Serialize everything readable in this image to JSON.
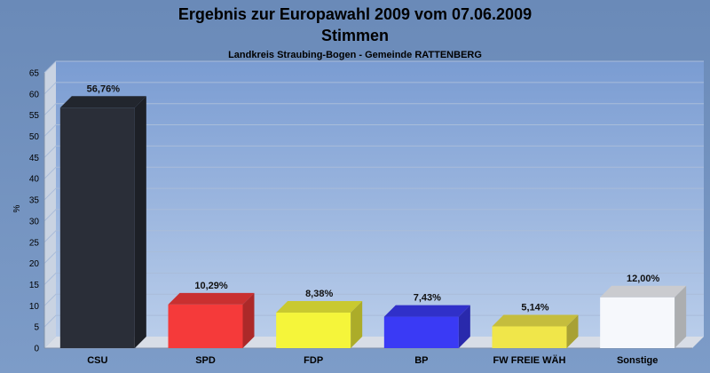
{
  "header": {
    "title_line1": "Ergebnis zur Europawahl 2009 vom 07.06.2009",
    "title_line2": "Stimmen",
    "subtitle": "Landkreis Straubing-Bogen - Gemeinde RATTENBERG"
  },
  "chart_data": {
    "type": "bar",
    "categories": [
      "CSU",
      "SPD",
      "FDP",
      "BP",
      "FW FREIE WÄH",
      "Sonstige"
    ],
    "values": [
      56.76,
      10.29,
      8.38,
      7.43,
      5.14,
      12.0
    ],
    "value_labels": [
      "56,76%",
      "10,29%",
      "8,38%",
      "7,43%",
      "5,14%",
      "12,00%"
    ],
    "colors": [
      "#2a2e38",
      "#f53a3a",
      "#f5f53a",
      "#3a3af5",
      "#f0e64a",
      "#f6f8fc"
    ],
    "ylabel": "%",
    "ylim": [
      0,
      65
    ],
    "yticks": [
      0,
      5,
      10,
      15,
      20,
      25,
      30,
      35,
      40,
      45,
      50,
      55,
      60,
      65
    ],
    "grid": true,
    "legend": "none"
  }
}
